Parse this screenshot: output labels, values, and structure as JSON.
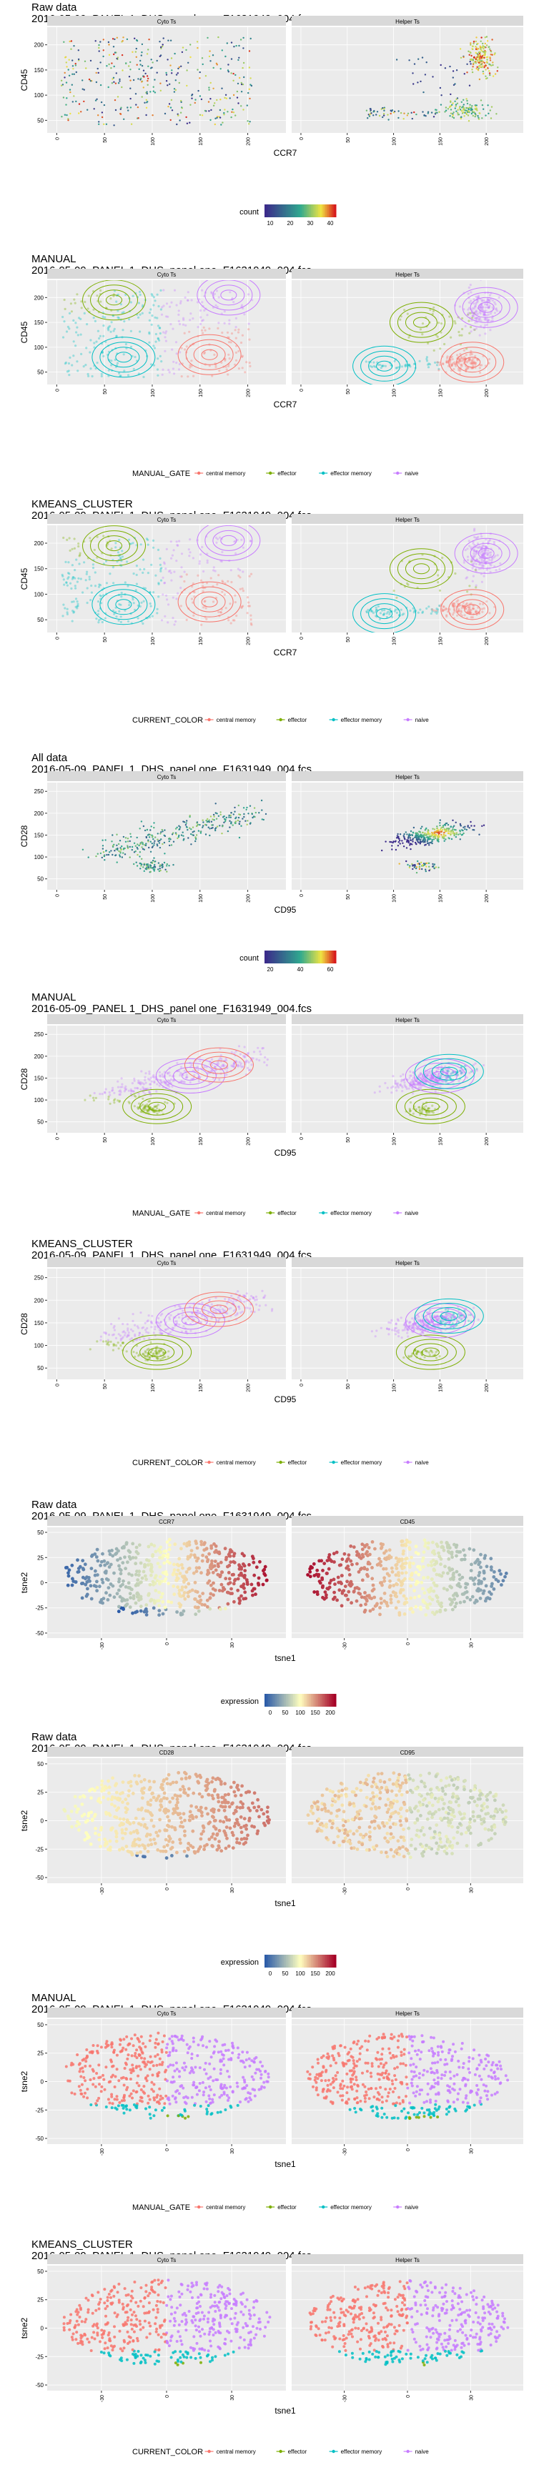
{
  "colors": {
    "central_memory": "#F8766D",
    "effector": "#7CAE00",
    "effector_memory": "#00BFC4",
    "naive": "#C77CFF",
    "panel_bg": "#EBEBEB",
    "strip_bg": "#D9D9D9",
    "grid": "#FFFFFF",
    "density_low": "#3B2A8A",
    "density_mid": "#2FA88F",
    "density_high": "#F0E442",
    "density_top": "#D7191C",
    "expr_low": "#2B5BA8",
    "expr_mid": "#FFFFBF",
    "expr_high": "#A50026"
  },
  "legends": {
    "count_a": {
      "title": "count",
      "ticks": [
        "10",
        "20",
        "30",
        "40"
      ]
    },
    "count_b": {
      "title": "count",
      "ticks": [
        "20",
        "40",
        "60"
      ]
    },
    "expression": {
      "title": "expression",
      "ticks": [
        "0",
        "50",
        "100",
        "150",
        "200"
      ]
    },
    "manual_gate": {
      "title": "MANUAL_GATE",
      "items": [
        "central memory",
        "effector",
        "effector memory",
        "naive"
      ]
    },
    "current_color": {
      "title": "CURRENT_COLOR",
      "items": [
        "central memory",
        "effector",
        "effector memory",
        "naive"
      ]
    }
  },
  "chart_data": [
    {
      "type": "scatter",
      "title": "Raw data",
      "subtitle": "2016-05-09_PANEL 1_DHS_panel one_F1631949_004.fcs",
      "xlabel": "CCR7",
      "ylabel": "CD45",
      "facets": [
        "Cyto Ts",
        "Helper Ts"
      ],
      "xticks": [
        "0",
        "50",
        "100",
        "150",
        "200"
      ],
      "yticks": [
        "50",
        "100",
        "150",
        "200"
      ],
      "xlim": [
        -10,
        240
      ],
      "ylim": [
        25,
        235
      ],
      "legend": "count_a"
    },
    {
      "type": "scatter",
      "title": "MANUAL",
      "subtitle": "2016-05-09_PANEL 1_DHS_panel one_F1631949_004.fcs",
      "xlabel": "CCR7",
      "ylabel": "CD45",
      "facets": [
        "Cyto Ts",
        "Helper Ts"
      ],
      "xticks": [
        "0",
        "50",
        "100",
        "150",
        "200"
      ],
      "yticks": [
        "50",
        "100",
        "150",
        "200"
      ],
      "xlim": [
        -10,
        240
      ],
      "ylim": [
        25,
        235
      ],
      "legend": "manual_gate"
    },
    {
      "type": "scatter",
      "title": "KMEANS_CLUSTER",
      "subtitle": "2016-05-09_PANEL 1_DHS_panel one_F1631949_004.fcs",
      "xlabel": "CCR7",
      "ylabel": "CD45",
      "facets": [
        "Cyto Ts",
        "Helper Ts"
      ],
      "xticks": [
        "0",
        "50",
        "100",
        "150",
        "200"
      ],
      "yticks": [
        "50",
        "100",
        "150",
        "200"
      ],
      "xlim": [
        -10,
        240
      ],
      "ylim": [
        25,
        235
      ],
      "legend": "current_color"
    },
    {
      "type": "scatter",
      "title": "All data",
      "subtitle": "2016-05-09_PANEL 1_DHS_panel one_F1631949_004.fcs",
      "xlabel": "CD95",
      "ylabel": "CD28",
      "facets": [
        "Cyto Ts",
        "Helper Ts"
      ],
      "xticks": [
        "0",
        "50",
        "100",
        "150",
        "200"
      ],
      "yticks": [
        "50",
        "100",
        "150",
        "200",
        "250"
      ],
      "xlim": [
        -10,
        240
      ],
      "ylim": [
        25,
        270
      ],
      "legend": "count_b"
    },
    {
      "type": "scatter",
      "title": "MANUAL",
      "subtitle": "2016-05-09_PANEL 1_DHS_panel one_F1631949_004.fcs",
      "xlabel": "CD95",
      "ylabel": "CD28",
      "facets": [
        "Cyto Ts",
        "Helper Ts"
      ],
      "xticks": [
        "0",
        "50",
        "100",
        "150",
        "200"
      ],
      "yticks": [
        "50",
        "100",
        "150",
        "200",
        "250"
      ],
      "xlim": [
        -10,
        240
      ],
      "ylim": [
        25,
        270
      ],
      "legend": "manual_gate"
    },
    {
      "type": "scatter",
      "title": "KMEANS_CLUSTER",
      "subtitle": "2016-05-09_PANEL 1_DHS_panel one_F1631949_004.fcs",
      "xlabel": "CD95",
      "ylabel": "CD28",
      "facets": [
        "Cyto Ts",
        "Helper Ts"
      ],
      "xticks": [
        "0",
        "50",
        "100",
        "150",
        "200"
      ],
      "yticks": [
        "50",
        "100",
        "150",
        "200",
        "250"
      ],
      "xlim": [
        -10,
        240
      ],
      "ylim": [
        25,
        270
      ],
      "legend": "current_color"
    },
    {
      "type": "scatter",
      "title": "Raw data",
      "subtitle": "2016-05-09_PANEL 1_DHS_panel one_F1631949_004.fcs",
      "xlabel": "tsne1",
      "ylabel": "tsne2",
      "facets": [
        "CCR7",
        "CD45"
      ],
      "xticks": [
        "-30",
        "0",
        "30"
      ],
      "yticks": [
        "-50",
        "-25",
        "0",
        "25",
        "50"
      ],
      "xlim": [
        -55,
        55
      ],
      "ylim": [
        -55,
        55
      ],
      "legend": "expression"
    },
    {
      "type": "scatter",
      "title": "Raw data",
      "subtitle": "2016-05-09_PANEL 1_DHS_panel one_F1631949_004.fcs",
      "xlabel": "tsne1",
      "ylabel": "tsne2",
      "facets": [
        "CD28",
        "CD95"
      ],
      "xticks": [
        "-30",
        "0",
        "30"
      ],
      "yticks": [
        "-50",
        "-25",
        "0",
        "25",
        "50"
      ],
      "xlim": [
        -55,
        55
      ],
      "ylim": [
        -55,
        55
      ],
      "legend": "expression"
    },
    {
      "type": "scatter",
      "title": "MANUAL",
      "subtitle": "2016-05-09_PANEL 1_DHS_panel one_F1631949_004.fcs",
      "xlabel": "tsne1",
      "ylabel": "tsne2",
      "facets": [
        "Cyto Ts",
        "Helper Ts"
      ],
      "xticks": [
        "-30",
        "0",
        "30"
      ],
      "yticks": [
        "-50",
        "-25",
        "0",
        "25",
        "50"
      ],
      "xlim": [
        -55,
        55
      ],
      "ylim": [
        -55,
        55
      ],
      "legend": "manual_gate"
    },
    {
      "type": "scatter",
      "title": "KMEANS_CLUSTER",
      "subtitle": "2016-05-09_PANEL 1_DHS_panel one_F1631949_004.fcs",
      "xlabel": "tsne1",
      "ylabel": "tsne2",
      "facets": [
        "Cyto Ts",
        "Helper Ts"
      ],
      "xticks": [
        "-30",
        "0",
        "30"
      ],
      "yticks": [
        "-50",
        "-25",
        "0",
        "25",
        "50"
      ],
      "xlim": [
        -55,
        55
      ],
      "ylim": [
        -55,
        55
      ],
      "legend": "current_color"
    }
  ]
}
